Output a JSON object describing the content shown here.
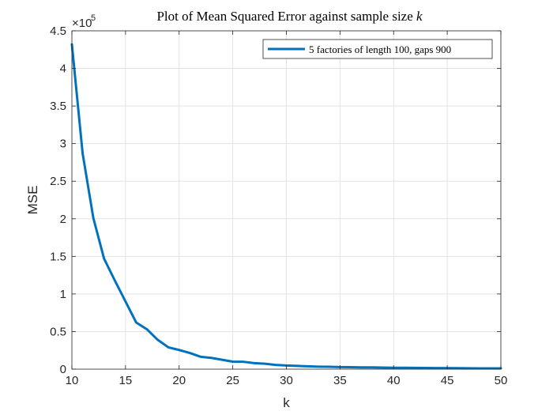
{
  "chart_data": {
    "type": "line",
    "title": "Plot of Mean Squared Error against sample size",
    "title_var": "k",
    "xlabel": "k",
    "ylabel": "MSE",
    "xlim": [
      10,
      50
    ],
    "ylim": [
      0,
      450000
    ],
    "x_ticks": [
      10,
      15,
      20,
      25,
      30,
      35,
      40,
      45,
      50
    ],
    "y_ticks": [
      0,
      50000,
      100000,
      150000,
      200000,
      250000,
      300000,
      350000,
      400000,
      450000
    ],
    "y_tick_labels": [
      "0",
      "0.5",
      "1",
      "1.5",
      "2",
      "2.5",
      "3",
      "3.5",
      "4",
      "4.5"
    ],
    "y_exponent_base": "×10",
    "y_exponent_power": "5",
    "grid": true,
    "legend_position": "top-right",
    "line_color": "#0072BD",
    "series": [
      {
        "name": "5 factories of length 100, gaps 900",
        "x": [
          10,
          11,
          12,
          13,
          14,
          15,
          16,
          17,
          18,
          19,
          20,
          21,
          22,
          23,
          24,
          25,
          26,
          27,
          28,
          29,
          30,
          31,
          32,
          33,
          34,
          35,
          36,
          37,
          38,
          39,
          40,
          41,
          42,
          43,
          44,
          45,
          46,
          47,
          48,
          49,
          50
        ],
        "values": [
          432000,
          287000,
          201000,
          147000,
          118000,
          90000,
          62000,
          53000,
          39000,
          29000,
          25500,
          21500,
          16500,
          15000,
          12500,
          10000,
          9800,
          8000,
          7200,
          5700,
          4800,
          4300,
          3800,
          3300,
          3100,
          2800,
          2600,
          2400,
          2300,
          2100,
          1900,
          1800,
          1700,
          1600,
          1500,
          1400,
          1300,
          1200,
          1100,
          1050,
          1000
        ]
      }
    ]
  }
}
